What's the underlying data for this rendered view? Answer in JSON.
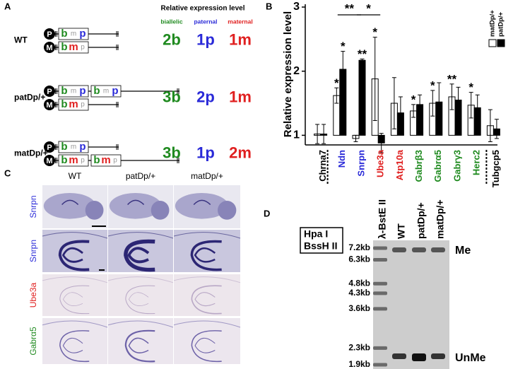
{
  "panel_a": {
    "label": "A",
    "header": "Relative expression level",
    "allele_types": [
      "biallelic",
      "paternal",
      "maternal"
    ],
    "allele_colors": [
      "#1f8a1f",
      "#2a2ad8",
      "#e02020"
    ],
    "parent_labels": [
      "P",
      "M"
    ],
    "gene_letters": [
      "b",
      "m",
      "p"
    ],
    "rows": [
      {
        "genotype": "WT",
        "paternal_copies": 1,
        "maternal_copies": 1,
        "levels": [
          "2b",
          "1p",
          "1m"
        ]
      },
      {
        "genotype": "patDp/+",
        "paternal_copies": 2,
        "maternal_copies": 1,
        "levels": [
          "3b",
          "2p",
          "1m"
        ]
      },
      {
        "genotype": "matDp/+",
        "paternal_copies": 1,
        "maternal_copies": 2,
        "levels": [
          "3b",
          "1p",
          "2m"
        ]
      }
    ]
  },
  "chart_data": {
    "type": "bar",
    "label": "B",
    "y_label": "Relative expression level",
    "categories": [
      "Chrna7",
      "Ndn",
      "Snrpn",
      "Ube3a",
      "Atp10a",
      "Gabrβ3",
      "Gabrα5",
      "Gabrγ3",
      "Herc2",
      "Tubgcp5"
    ],
    "category_colors": [
      "#000000",
      "#2a2ad8",
      "#2a2ad8",
      "#e02020",
      "#e02020",
      "#1f8a1f",
      "#1f8a1f",
      "#1f8a1f",
      "#1f8a1f",
      "#000000"
    ],
    "series": [
      {
        "name": "matDp/+",
        "color": "#ffffff",
        "values": [
          1.02,
          1.62,
          0.95,
          1.88,
          1.5,
          1.38,
          1.5,
          1.6,
          1.47,
          1.15
        ],
        "errors": [
          0.15,
          0.12,
          0.05,
          0.65,
          0.4,
          0.1,
          0.2,
          0.2,
          0.2,
          0.25
        ],
        "stars": [
          null,
          "*",
          null,
          "*",
          null,
          "*",
          "*",
          "**",
          "*",
          null
        ]
      },
      {
        "name": "patDp/+",
        "color": "#000000",
        "values": [
          1.02,
          2.03,
          2.17,
          0.88,
          1.35,
          1.48,
          1.52,
          1.55,
          1.43,
          1.1
        ],
        "errors": [
          0.15,
          0.28,
          0.02,
          0.15,
          0.25,
          0.15,
          0.3,
          0.2,
          0.2,
          0.15
        ],
        "stars": [
          null,
          "*",
          "**",
          null,
          null,
          null,
          null,
          null,
          null,
          null
        ]
      }
    ],
    "ylim": [
      0.85,
      3
    ],
    "yticks": [
      1,
      2,
      3
    ],
    "brackets": [
      {
        "label": "**",
        "from": 1,
        "to": 2
      },
      {
        "label": "*",
        "from": 2,
        "to": 3
      }
    ]
  },
  "panel_c": {
    "label": "C",
    "columns": [
      "WT",
      "patDp/+",
      "matDp/+"
    ],
    "rows": [
      {
        "label": "Snrpn",
        "color": "#2a2ad8"
      },
      {
        "label": "Snrpn",
        "color": "#2a2ad8"
      },
      {
        "label": "Ube3a",
        "color": "#e02020"
      },
      {
        "label": "Gabrα5",
        "color": "#1f8a1f"
      }
    ]
  },
  "panel_d": {
    "label": "D",
    "enzymes": [
      "Hpa I",
      "BssH II"
    ],
    "lanes": [
      "λ-BstE II",
      "WT",
      "patDp/+",
      "matDp/+"
    ],
    "markers": [
      {
        "value": 7.2,
        "label": "7.2kb"
      },
      {
        "value": 6.3,
        "label": "6.3kb"
      },
      {
        "value": 4.8,
        "label": "4.8kb"
      },
      {
        "value": 4.3,
        "label": "4.3kb"
      },
      {
        "value": 3.6,
        "label": "3.6kb"
      },
      {
        "value": 2.3,
        "label": "2.3kb"
      },
      {
        "value": 1.9,
        "label": "1.9kb"
      }
    ],
    "bands": [
      "Me",
      "UnMe"
    ]
  }
}
